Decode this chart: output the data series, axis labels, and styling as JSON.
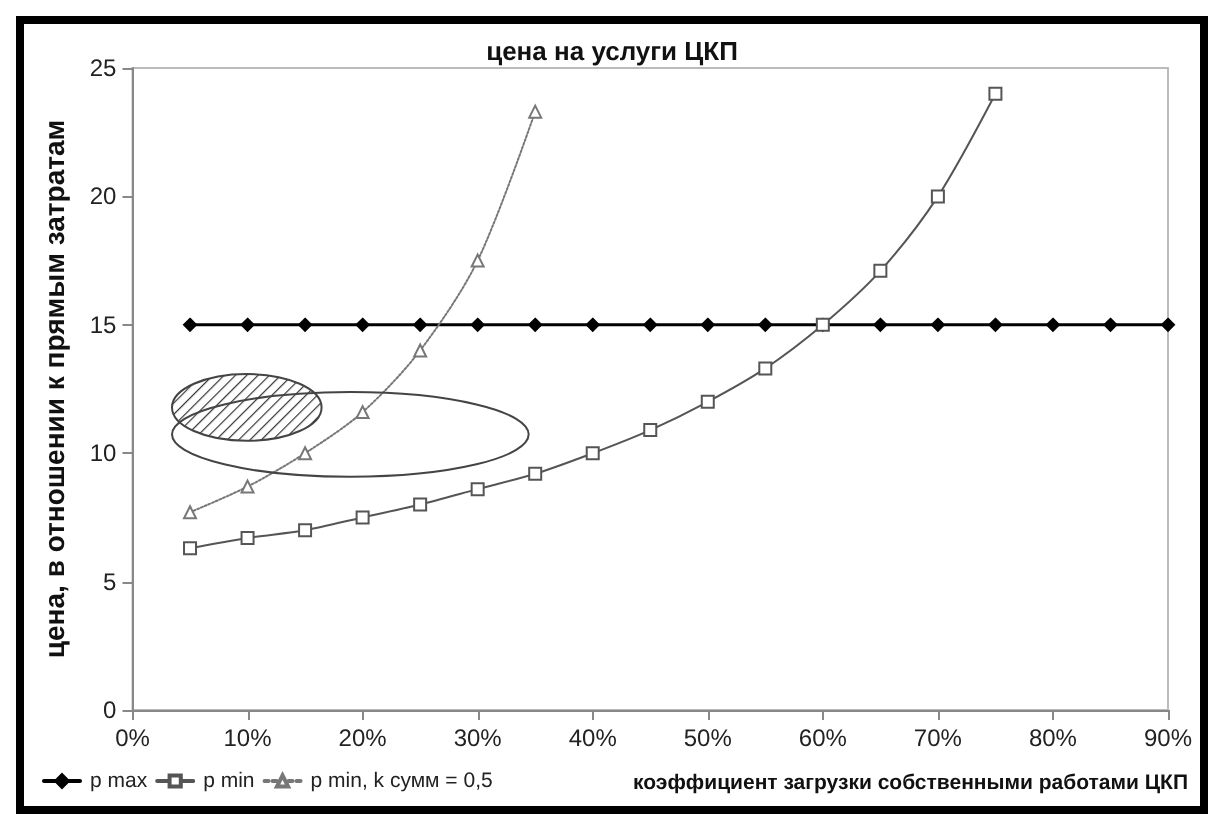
{
  "chart_data": {
    "type": "line",
    "title": "цена на услуги ЦКП",
    "xlabel": "коэффициент загрузки собственными работами ЦКП",
    "ylabel": "цена, в отношении к прямым затратам",
    "x": [
      5,
      10,
      15,
      20,
      25,
      30,
      35,
      40,
      45,
      50,
      55,
      60,
      65,
      70,
      75,
      80,
      85,
      90
    ],
    "series": [
      {
        "name": "p max",
        "color": "#000000",
        "marker": "diamond",
        "line_style": "solid",
        "values": [
          15,
          15,
          15,
          15,
          15,
          15,
          15,
          15,
          15,
          15,
          15,
          15,
          15,
          15,
          15,
          15,
          15,
          15
        ]
      },
      {
        "name": "p min",
        "color": "#555555",
        "marker": "square",
        "line_style": "solid",
        "values": [
          6.3,
          6.7,
          7.0,
          7.5,
          8.0,
          8.6,
          9.2,
          10.0,
          10.9,
          12.0,
          13.3,
          15.0,
          17.1,
          20.0,
          24.0,
          null,
          null,
          null
        ]
      },
      {
        "name": "p min, k сумм = 0,5",
        "color": "#777777",
        "marker": "triangle",
        "line_style": "dotted",
        "values": [
          7.7,
          8.7,
          10.0,
          11.6,
          14.0,
          17.5,
          23.3,
          null,
          null,
          null,
          null,
          null,
          null,
          null,
          null,
          null,
          null,
          null
        ]
      }
    ],
    "xlim": [
      0,
      90
    ],
    "xticks": [
      {
        "value": 0,
        "label": "0%"
      },
      {
        "value": 10,
        "label": "10%"
      },
      {
        "value": 20,
        "label": "20%"
      },
      {
        "value": 30,
        "label": "30%"
      },
      {
        "value": 40,
        "label": "40%"
      },
      {
        "value": 50,
        "label": "50%"
      },
      {
        "value": 60,
        "label": "60%"
      },
      {
        "value": 70,
        "label": "70%"
      },
      {
        "value": 80,
        "label": "80%"
      },
      {
        "value": 90,
        "label": "90%"
      }
    ],
    "ylim": [
      0,
      25
    ],
    "yticks": [
      0,
      5,
      10,
      15,
      20,
      25
    ],
    "grid": false,
    "legend": "bottom left"
  }
}
